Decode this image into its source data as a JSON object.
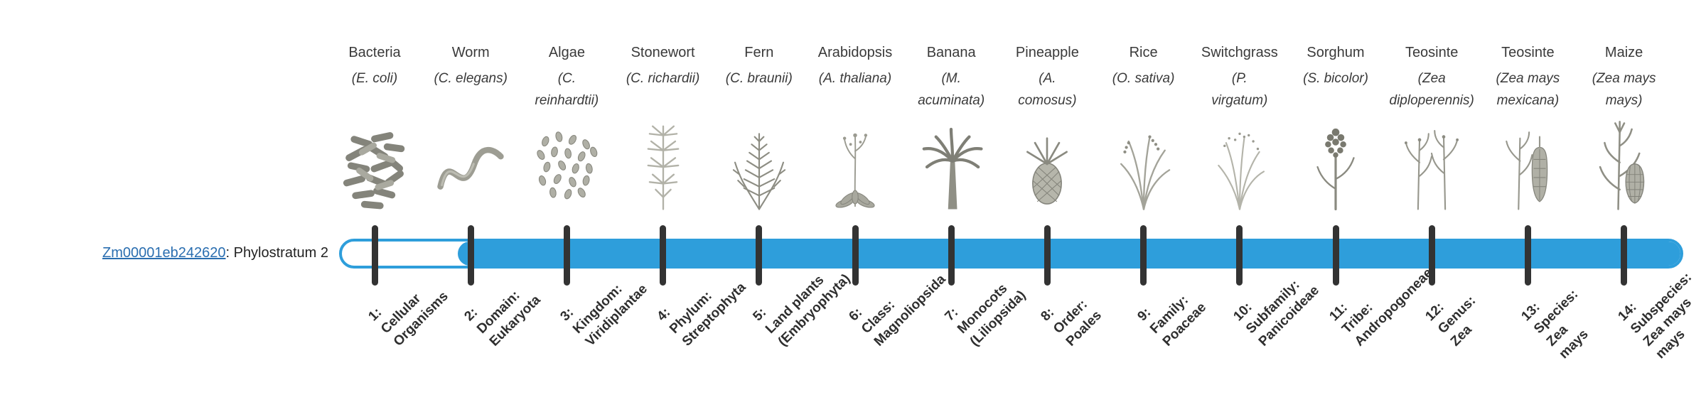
{
  "colors": {
    "bar_blue": "#2e9edb",
    "tick_dark": "#333333",
    "link_blue": "#2a6eb0",
    "text_dark": "#3a3a3a"
  },
  "gene": {
    "id": "Zm00001eb242620",
    "suffix": ": Phylostratum 2",
    "phylostratum": 2
  },
  "timeline": {
    "filled_from_stratum": 2,
    "total_strata": 14
  },
  "organisms": [
    {
      "name": "Bacteria",
      "sci": "(E. coli)",
      "icon": "bacteria-icon",
      "stratum": "1:\nCellular\nOrganisms"
    },
    {
      "name": "Worm",
      "sci": "(C. elegans)",
      "icon": "worm-icon",
      "stratum": "2:\nDomain:\nEukaryota"
    },
    {
      "name": "Algae",
      "sci": "(C.\nreinhardtii)",
      "icon": "algae-icon",
      "stratum": "3:\nKingdom:\nViridiplantae"
    },
    {
      "name": "Stonewort",
      "sci": "(C. richardii)",
      "icon": "stonewort-icon",
      "stratum": "4:\nPhylum:\nStreptophyta"
    },
    {
      "name": "Fern",
      "sci": "(C. braunii)",
      "icon": "fern-icon",
      "stratum": "5:\nLand plants\n(Embryophyta)"
    },
    {
      "name": "Arabidopsis",
      "sci": "(A. thaliana)",
      "icon": "rosette-icon",
      "stratum": "6:\nClass:\nMagnoliopsida"
    },
    {
      "name": "Banana",
      "sci": "(M.\nacuminata)",
      "icon": "palm-icon",
      "stratum": "7:\nMonocots\n(Liliopsida)"
    },
    {
      "name": "Pineapple",
      "sci": "(A.\ncomosus)",
      "icon": "pineapple-icon",
      "stratum": "8:\nOrder:\nPoales"
    },
    {
      "name": "Rice",
      "sci": "(O. sativa)",
      "icon": "grass-icon",
      "stratum": "9:\nFamily:\nPoaceae"
    },
    {
      "name": "Switchgrass",
      "sci": "(P.\nvirgatum)",
      "icon": "switchgrass-icon",
      "stratum": "10:\nSubfamily:\nPanicoideae"
    },
    {
      "name": "Sorghum",
      "sci": "(S. bicolor)",
      "icon": "sorghum-icon",
      "stratum": "11:\nTribe:\nAndropogoneae"
    },
    {
      "name": "Teosinte",
      "sci": "(Zea\ndiploperennis)",
      "icon": "teosinte-icon",
      "stratum": "12:\nGenus:\nZea"
    },
    {
      "name": "Teosinte",
      "sci": "(Zea mays\nmexicana)",
      "icon": "teosinte-ear-icon",
      "stratum": "13:\nSpecies:\nZea\nmays"
    },
    {
      "name": "Maize",
      "sci": "(Zea mays\nmays)",
      "icon": "maize-icon",
      "stratum": "14:\nSubspecies:\nZea mays\nmays"
    }
  ]
}
